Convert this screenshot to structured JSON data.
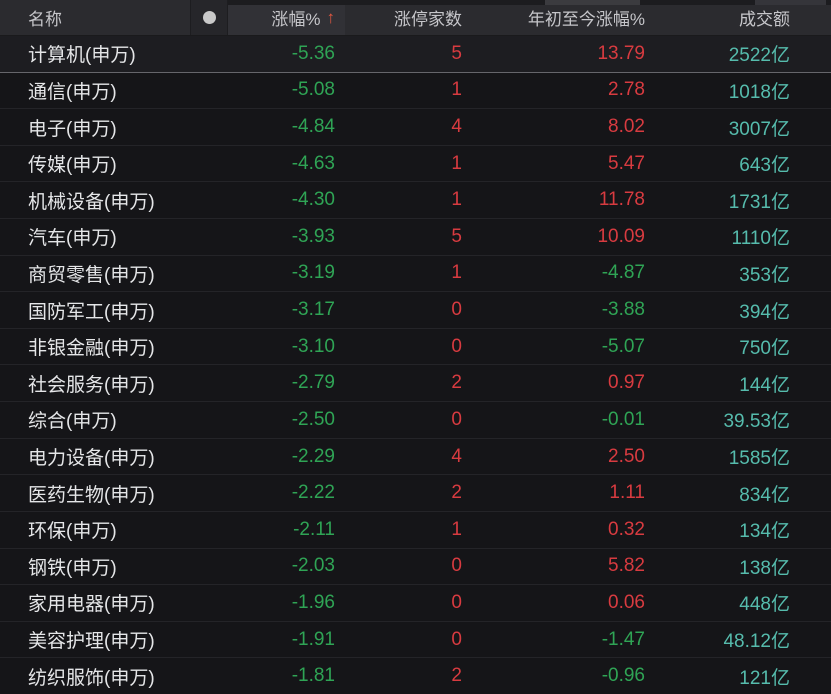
{
  "header": {
    "name_label": "名称",
    "indicator_icon": "status-dot",
    "change_label": "涨幅%",
    "sort_arrow": "↑",
    "limit_up_label": "涨停家数",
    "ytd_label": "年初至今涨幅%",
    "turnover_label": "成交额"
  },
  "colors": {
    "up_red": "#d83b40",
    "down_green": "#2fa455",
    "turnover_teal": "#56bcad",
    "sort_arrow_orange": "#e25840",
    "header_bg": "#2b2b2f",
    "row_bg": "#151518"
  },
  "table": {
    "rows": [
      {
        "name": "计算机(申万)",
        "change": "-5.36",
        "limit_up": "5",
        "ytd": "13.79",
        "turnover": "2522亿"
      },
      {
        "name": "通信(申万)",
        "change": "-5.08",
        "limit_up": "1",
        "ytd": "2.78",
        "turnover": "1018亿"
      },
      {
        "name": "电子(申万)",
        "change": "-4.84",
        "limit_up": "4",
        "ytd": "8.02",
        "turnover": "3007亿"
      },
      {
        "name": "传媒(申万)",
        "change": "-4.63",
        "limit_up": "1",
        "ytd": "5.47",
        "turnover": "643亿"
      },
      {
        "name": "机械设备(申万)",
        "change": "-4.30",
        "limit_up": "1",
        "ytd": "11.78",
        "turnover": "1731亿"
      },
      {
        "name": "汽车(申万)",
        "change": "-3.93",
        "limit_up": "5",
        "ytd": "10.09",
        "turnover": "1110亿"
      },
      {
        "name": "商贸零售(申万)",
        "change": "-3.19",
        "limit_up": "1",
        "ytd": "-4.87",
        "turnover": "353亿"
      },
      {
        "name": "国防军工(申万)",
        "change": "-3.17",
        "limit_up": "0",
        "ytd": "-3.88",
        "turnover": "394亿"
      },
      {
        "name": "非银金融(申万)",
        "change": "-3.10",
        "limit_up": "0",
        "ytd": "-5.07",
        "turnover": "750亿"
      },
      {
        "name": "社会服务(申万)",
        "change": "-2.79",
        "limit_up": "2",
        "ytd": "0.97",
        "turnover": "144亿"
      },
      {
        "name": "综合(申万)",
        "change": "-2.50",
        "limit_up": "0",
        "ytd": "-0.01",
        "turnover": "39.53亿"
      },
      {
        "name": "电力设备(申万)",
        "change": "-2.29",
        "limit_up": "4",
        "ytd": "2.50",
        "turnover": "1585亿"
      },
      {
        "name": "医药生物(申万)",
        "change": "-2.22",
        "limit_up": "2",
        "ytd": "1.11",
        "turnover": "834亿"
      },
      {
        "name": "环保(申万)",
        "change": "-2.11",
        "limit_up": "1",
        "ytd": "0.32",
        "turnover": "134亿"
      },
      {
        "name": "钢铁(申万)",
        "change": "-2.03",
        "limit_up": "0",
        "ytd": "5.82",
        "turnover": "138亿"
      },
      {
        "name": "家用电器(申万)",
        "change": "-1.96",
        "limit_up": "0",
        "ytd": "0.06",
        "turnover": "448亿"
      },
      {
        "name": "美容护理(申万)",
        "change": "-1.91",
        "limit_up": "0",
        "ytd": "-1.47",
        "turnover": "48.12亿"
      },
      {
        "name": "纺织服饰(申万)",
        "change": "-1.81",
        "limit_up": "2",
        "ytd": "-0.96",
        "turnover": "121亿"
      }
    ]
  }
}
